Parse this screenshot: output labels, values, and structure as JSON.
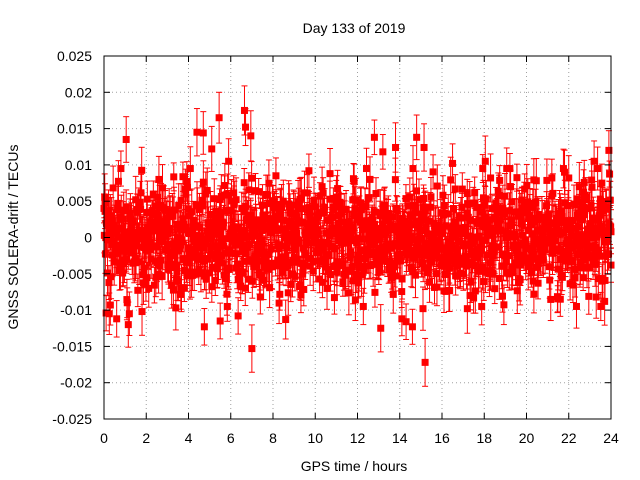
{
  "chart_data": {
    "type": "scatter",
    "title": "Day 133 of 2019",
    "xlabel": "GPS time / hours",
    "ylabel": "GNSS SOLERA-drift / TECUs",
    "xlim": [
      0,
      24
    ],
    "ylim": [
      -0.025,
      0.025
    ],
    "x_ticks": [
      "0",
      "2",
      "4",
      "6",
      "8",
      "10",
      "12",
      "14",
      "16",
      "18",
      "20",
      "22",
      "24"
    ],
    "y_ticks": [
      "-0.025",
      "-0.02",
      "-0.015",
      "-0.01",
      "-0.005",
      "0",
      "0.005",
      "0.01",
      "0.015",
      "0.02",
      "0.025"
    ],
    "x_tick_values": [
      0,
      2,
      4,
      6,
      8,
      10,
      12,
      14,
      16,
      18,
      20,
      22,
      24
    ],
    "y_tick_values": [
      -0.025,
      -0.02,
      -0.015,
      -0.01,
      -0.005,
      0,
      0.005,
      0.01,
      0.015,
      0.02,
      0.025
    ],
    "grid": true,
    "series": [
      {
        "name": "SOLERA-drift",
        "color": "#ff0000",
        "marker": "square",
        "error_bars": true,
        "typical_error": 0.0025,
        "n_points": 1440,
        "noise_sigma": 0.0035,
        "outliers": [
          {
            "x": 0.05,
            "y": 0.0036
          },
          {
            "x": 0.1,
            "y": -0.0104
          },
          {
            "x": 0.25,
            "y": -0.0105
          },
          {
            "x": 0.3,
            "y": -0.0093
          },
          {
            "x": 0.6,
            "y": -0.0112
          },
          {
            "x": 1.05,
            "y": 0.0135
          },
          {
            "x": 1.15,
            "y": -0.012
          },
          {
            "x": 1.2,
            "y": -0.0105
          },
          {
            "x": 1.8,
            "y": -0.0102
          },
          {
            "x": 2.6,
            "y": 0.008
          },
          {
            "x": 3.4,
            "y": -0.0097
          },
          {
            "x": 4.4,
            "y": 0.0145
          },
          {
            "x": 4.7,
            "y": 0.0144
          },
          {
            "x": 4.75,
            "y": -0.0123
          },
          {
            "x": 5.1,
            "y": 0.0122
          },
          {
            "x": 5.45,
            "y": 0.0165
          },
          {
            "x": 5.5,
            "y": -0.0115
          },
          {
            "x": 5.9,
            "y": 0.0105
          },
          {
            "x": 6.35,
            "y": -0.0108
          },
          {
            "x": 6.65,
            "y": 0.0175
          },
          {
            "x": 6.7,
            "y": 0.0152
          },
          {
            "x": 6.95,
            "y": 0.014
          },
          {
            "x": 7.0,
            "y": -0.0153
          },
          {
            "x": 7.4,
            "y": -0.0082
          },
          {
            "x": 8.6,
            "y": -0.0113
          },
          {
            "x": 9.7,
            "y": 0.0092
          },
          {
            "x": 10.7,
            "y": 0.0088
          },
          {
            "x": 11.9,
            "y": -0.0086
          },
          {
            "x": 12.8,
            "y": 0.0138
          },
          {
            "x": 13.1,
            "y": -0.0125
          },
          {
            "x": 13.2,
            "y": 0.0118
          },
          {
            "x": 13.8,
            "y": 0.0124
          },
          {
            "x": 14.1,
            "y": -0.0112
          },
          {
            "x": 14.3,
            "y": -0.0116
          },
          {
            "x": 14.6,
            "y": -0.0123
          },
          {
            "x": 14.8,
            "y": 0.0138
          },
          {
            "x": 15.1,
            "y": -0.0098
          },
          {
            "x": 15.15,
            "y": 0.0124
          },
          {
            "x": 15.2,
            "y": -0.0172
          },
          {
            "x": 16.5,
            "y": 0.0102
          },
          {
            "x": 17.2,
            "y": -0.0098
          },
          {
            "x": 18.05,
            "y": 0.0105
          },
          {
            "x": 18.3,
            "y": 0.0082
          },
          {
            "x": 19.7,
            "y": -0.0058
          },
          {
            "x": 20.35,
            "y": -0.0078
          },
          {
            "x": 21.2,
            "y": 0.0082
          },
          {
            "x": 21.6,
            "y": -0.0085
          },
          {
            "x": 22.0,
            "y": 0.0082
          },
          {
            "x": 22.5,
            "y": 0.007
          },
          {
            "x": 23.2,
            "y": 0.0105
          },
          {
            "x": 23.3,
            "y": -0.0082
          },
          {
            "x": 23.7,
            "y": -0.0088
          },
          {
            "x": 23.9,
            "y": 0.012
          },
          {
            "x": 24.0,
            "y": -0.0038
          }
        ]
      }
    ]
  }
}
